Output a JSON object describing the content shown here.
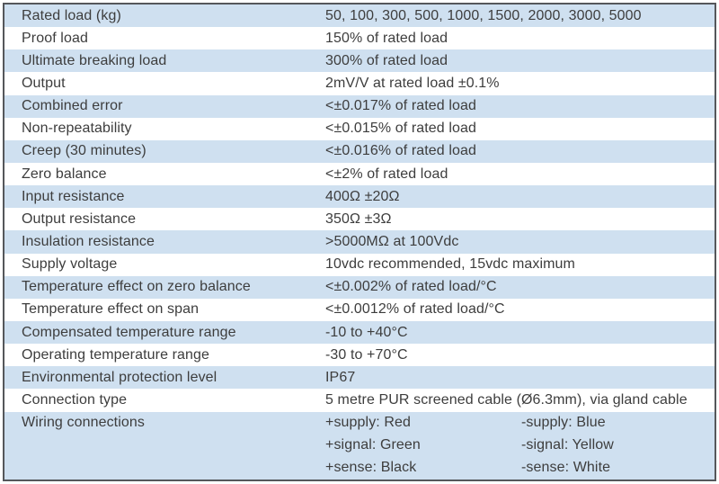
{
  "table": {
    "rows": [
      {
        "label": "Rated load (kg)",
        "value": "50, 100, 300, 500, 1000, 1500, 2000, 3000, 5000"
      },
      {
        "label": "Proof load",
        "value": "150% of rated load"
      },
      {
        "label": "Ultimate breaking load",
        "value": "300% of rated load"
      },
      {
        "label": "Output",
        "value": "2mV/V at rated load ±0.1%"
      },
      {
        "label": "Combined error",
        "value": "<±0.017% of rated load"
      },
      {
        "label": "Non-repeatability",
        "value": "<±0.015% of rated load"
      },
      {
        "label": "Creep (30 minutes)",
        "value": "<±0.016% of rated load"
      },
      {
        "label": "Zero balance",
        "value": "<±2% of rated load"
      },
      {
        "label": "Input resistance",
        "value": "400Ω ±20Ω"
      },
      {
        "label": "Output resistance",
        "value": "350Ω ±3Ω"
      },
      {
        "label": "Insulation resistance",
        "value": ">5000MΩ at 100Vdc"
      },
      {
        "label": "Supply voltage",
        "value": "10vdc recommended, 15vdc maximum"
      },
      {
        "label": "Temperature effect on zero balance",
        "value": "<±0.002% of rated load/°C"
      },
      {
        "label": "Temperature effect on span",
        "value": "<±0.0012% of rated load/°C"
      },
      {
        "label": "Compensated temperature range",
        "value": "-10 to +40°C"
      },
      {
        "label": "Operating temperature range",
        "value": "-30 to +70°C"
      },
      {
        "label": "Environmental protection level",
        "value": "IP67"
      },
      {
        "label": "Connection type",
        "value": "5 metre PUR screened cable (Ø6.3mm), via gland cable"
      }
    ],
    "wiring": {
      "label": "Wiring connections",
      "lines": [
        {
          "left": "+supply: Red",
          "right": "-supply: Blue"
        },
        {
          "left": "+signal: Green",
          "right": "-signal: Yellow"
        },
        {
          "left": "+sense: Black",
          "right": "-sense: White"
        }
      ]
    },
    "colors": {
      "stripe": "#cfe0f0",
      "text": "#3d3d3d",
      "border": "#55575b",
      "background": "#ffffff"
    }
  }
}
